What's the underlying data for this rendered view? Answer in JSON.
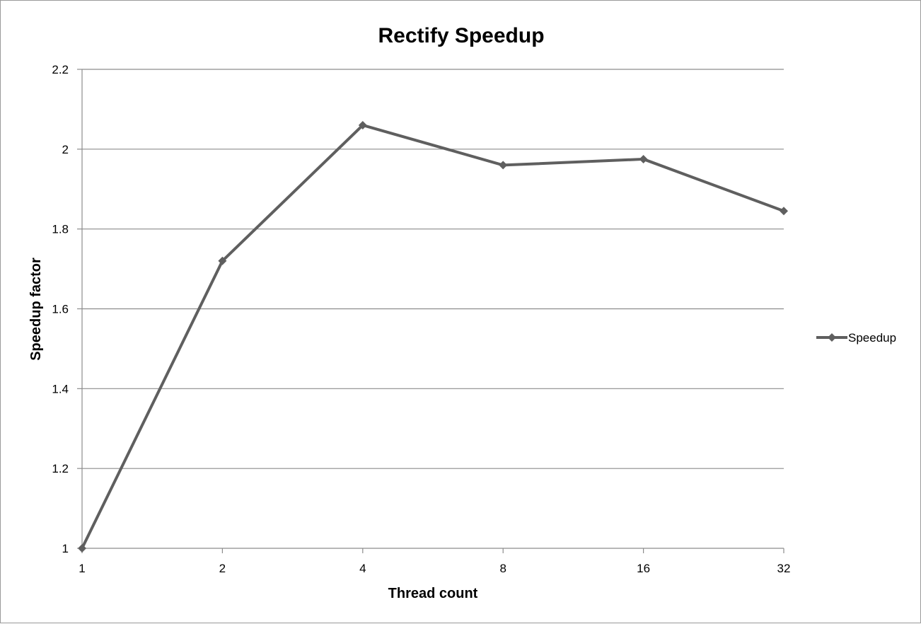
{
  "chart_data": {
    "type": "line",
    "title": "Rectify Speedup",
    "xlabel": "Thread count",
    "ylabel": "Speedup factor",
    "categories": [
      "1",
      "2",
      "4",
      "8",
      "16",
      "32"
    ],
    "series": [
      {
        "name": "Speedup",
        "values": [
          1.0,
          1.72,
          2.06,
          1.96,
          1.975,
          1.845
        ]
      }
    ],
    "ylim": [
      1,
      2.2
    ],
    "yticks": [
      "1",
      "1.2",
      "1.4",
      "1.6",
      "1.8",
      "2",
      "2.2"
    ],
    "grid": "horizontal",
    "legend_position": "right",
    "colors": {
      "series": "#5f5f5f",
      "grid": "#8c8c8c",
      "axis": "#8c8c8c"
    }
  }
}
